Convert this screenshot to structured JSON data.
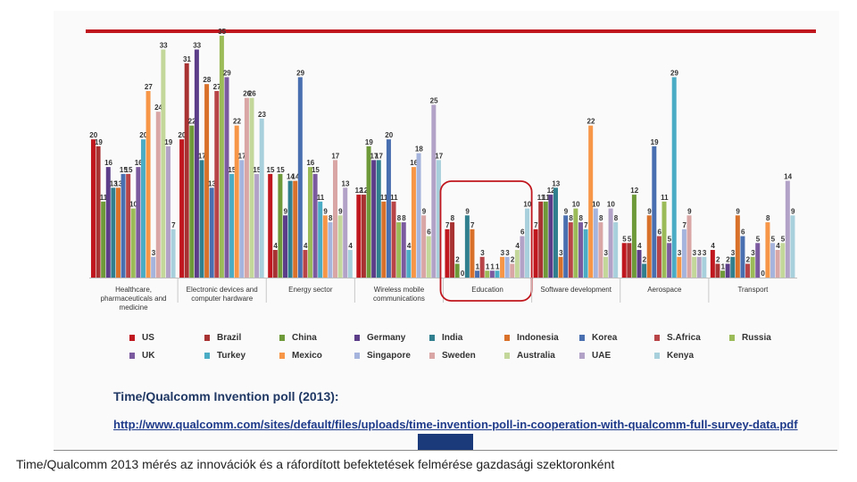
{
  "caption": "Time/Qualcomm 2013 mérés az innovációk és a ráfordított befektetések felmérése gazdasági szektoronként",
  "source": {
    "title": "Time/Qualcomm Invention poll (2013):",
    "link": "http://www.qualcomm.com/sites/default/files/uploads/time-invention-poll-in-cooperation-with-qualcomm-full-survey-data.pdf"
  },
  "highlight_color": "#c0161d",
  "chart_data": {
    "type": "bar",
    "title": "",
    "xlabel": "",
    "ylabel": "",
    "ylim": [
      0,
      35
    ],
    "grid": false,
    "legend_position": "bottom",
    "categories": [
      [
        "Healthcare,",
        "pharmaceuticals and",
        "medicine"
      ],
      [
        "Electronic devices and",
        "computer hardware"
      ],
      [
        "Energy sector"
      ],
      [
        "Wireless mobile",
        "communications"
      ],
      [
        "Education"
      ],
      [
        "Software development"
      ],
      [
        "Aerospace"
      ],
      [
        "Transport"
      ]
    ],
    "highlighted_category": 4,
    "series": [
      {
        "name": "US",
        "color": "#c0161d",
        "values": [
          20,
          20,
          15,
          12,
          7,
          7,
          5,
          4
        ]
      },
      {
        "name": "Brazil",
        "color": "#a83232",
        "values": [
          19,
          31,
          4,
          12,
          8,
          11,
          5,
          2
        ]
      },
      {
        "name": "China",
        "color": "#6f9a3a",
        "values": [
          11,
          22,
          15,
          19,
          2,
          11,
          12,
          1
        ]
      },
      {
        "name": "Germany",
        "color": "#5b3d8a",
        "values": [
          16,
          33,
          9,
          17,
          0,
          12,
          4,
          2
        ]
      },
      {
        "name": "India",
        "color": "#2f7f8f",
        "values": [
          13,
          17,
          14,
          17,
          9,
          13,
          2,
          3
        ]
      },
      {
        "name": "Indonesia",
        "color": "#d9712a",
        "values": [
          13,
          28,
          14,
          11,
          7,
          3,
          9,
          9
        ]
      },
      {
        "name": "Korea",
        "color": "#4a6fb0",
        "values": [
          15,
          13,
          29,
          20,
          1,
          9,
          19,
          6
        ]
      },
      {
        "name": "S.Africa",
        "color": "#b84448",
        "values": [
          15,
          27,
          4,
          11,
          3,
          8,
          6,
          2
        ]
      },
      {
        "name": "Russia",
        "color": "#9bbb59",
        "values": [
          10,
          35,
          16,
          8,
          1,
          10,
          11,
          3
        ]
      },
      {
        "name": "UK",
        "color": "#7b5aa0",
        "values": [
          16,
          29,
          15,
          8,
          1,
          8,
          5,
          5
        ]
      },
      {
        "name": "Turkey",
        "color": "#4bacc6",
        "values": [
          20,
          15,
          11,
          4,
          1,
          7,
          29,
          0
        ]
      },
      {
        "name": "Mexico",
        "color": "#f79646",
        "values": [
          27,
          22,
          9,
          16,
          3,
          22,
          3,
          8
        ]
      },
      {
        "name": "Singapore",
        "color": "#a5b4dc",
        "values": [
          3,
          17,
          8,
          18,
          3,
          10,
          7,
          5
        ]
      },
      {
        "name": "Sweden",
        "color": "#d9a5a5",
        "values": [
          24,
          26,
          17,
          9,
          2,
          8,
          9,
          4
        ]
      },
      {
        "name": "Australia",
        "color": "#c4d79b",
        "values": [
          33,
          26,
          9,
          6,
          4,
          3,
          3,
          5
        ]
      },
      {
        "name": "UAE",
        "color": "#b3a2c7",
        "values": [
          19,
          15,
          13,
          25,
          6,
          10,
          3,
          14
        ]
      },
      {
        "name": "Kenya",
        "color": "#a8d0dc",
        "values": [
          7,
          23,
          4,
          17,
          10,
          8,
          3,
          9
        ]
      }
    ]
  }
}
